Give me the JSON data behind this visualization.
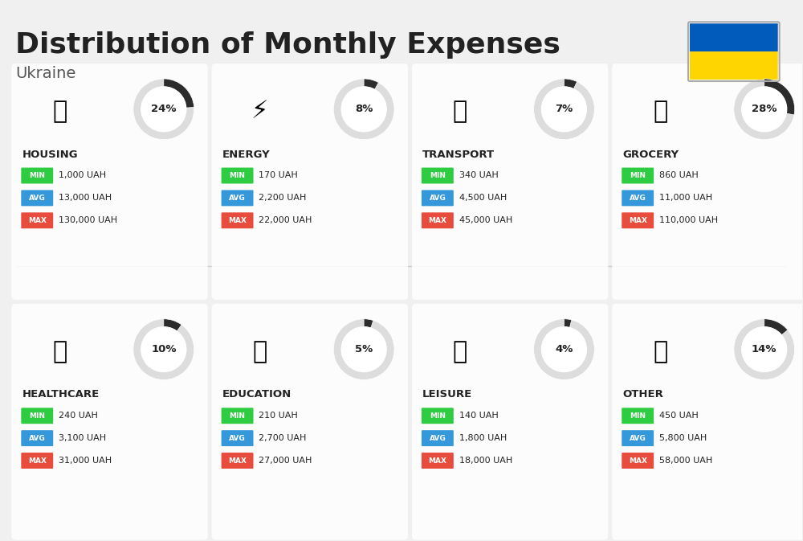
{
  "title": "Distribution of Monthly Expenses",
  "subtitle": "Ukraine",
  "bg_color": "#f0f0f0",
  "categories": [
    {
      "name": "HOUSING",
      "pct": 24,
      "min": "1,000 UAH",
      "avg": "13,000 UAH",
      "max": "130,000 UAH",
      "row": 0,
      "col": 0
    },
    {
      "name": "ENERGY",
      "pct": 8,
      "min": "170 UAH",
      "avg": "2,200 UAH",
      "max": "22,000 UAH",
      "row": 0,
      "col": 1
    },
    {
      "name": "TRANSPORT",
      "pct": 7,
      "min": "340 UAH",
      "avg": "4,500 UAH",
      "max": "45,000 UAH",
      "row": 0,
      "col": 2
    },
    {
      "name": "GROCERY",
      "pct": 28,
      "min": "860 UAH",
      "avg": "11,000 UAH",
      "max": "110,000 UAH",
      "row": 0,
      "col": 3
    },
    {
      "name": "HEALTHCARE",
      "pct": 10,
      "min": "240 UAH",
      "avg": "3,100 UAH",
      "max": "31,000 UAH",
      "row": 1,
      "col": 0
    },
    {
      "name": "EDUCATION",
      "pct": 5,
      "min": "210 UAH",
      "avg": "2,700 UAH",
      "max": "27,000 UAH",
      "row": 1,
      "col": 1
    },
    {
      "name": "LEISURE",
      "pct": 4,
      "min": "140 UAH",
      "avg": "1,800 UAH",
      "max": "18,000 UAH",
      "row": 1,
      "col": 2
    },
    {
      "name": "OTHER",
      "pct": 14,
      "min": "450 UAH",
      "avg": "5,800 UAH",
      "max": "58,000 UAH",
      "row": 1,
      "col": 3
    }
  ],
  "min_color": "#2ecc40",
  "avg_color": "#3498db",
  "max_color": "#e74c3c",
  "label_color": "#ffffff",
  "text_color": "#222222",
  "ring_bg": "#cccccc",
  "ring_fg": "#333333",
  "ukraine_blue": "#005bbb",
  "ukraine_yellow": "#ffd500"
}
